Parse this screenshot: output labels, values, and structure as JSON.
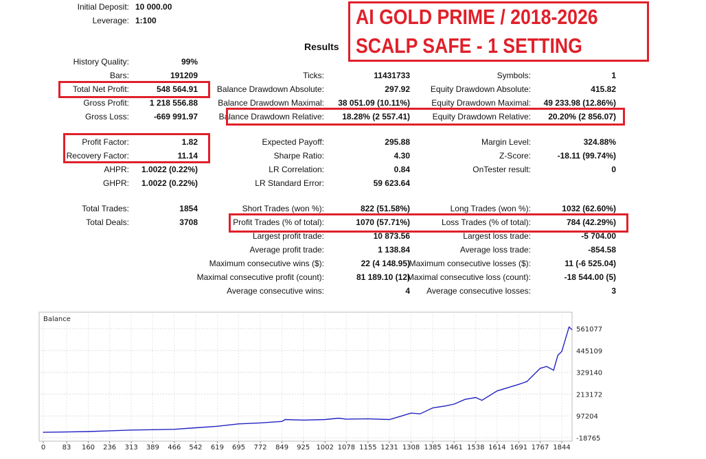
{
  "title": {
    "line1": "AI GOLD PRIME / 2018-2026",
    "line2": "SCALP SAFE - 1 SETTING",
    "color": "#e0202a"
  },
  "results_heading": "Results",
  "rows": [
    [
      [
        "Initial Deposit:",
        "10 000.00"
      ],
      null,
      null
    ],
    [
      [
        "Leverage:",
        "1:100"
      ],
      null,
      null
    ],
    [
      [
        "History Quality:",
        "99%"
      ],
      null,
      null
    ],
    [
      [
        "Bars:",
        "191209"
      ],
      [
        "Ticks:",
        "11431733"
      ],
      [
        "Symbols:",
        "1"
      ]
    ],
    [
      [
        "Total Net Profit:",
        "548 564.91"
      ],
      [
        "Balance Drawdown Absolute:",
        "297.92"
      ],
      [
        "Equity Drawdown Absolute:",
        "415.82"
      ]
    ],
    [
      [
        "Gross Profit:",
        "1 218 556.88"
      ],
      [
        "Balance Drawdown Maximal:",
        "38 051.09 (10.11%)"
      ],
      [
        "Equity Drawdown Maximal:",
        "49 233.98 (12.86%)"
      ]
    ],
    [
      [
        "Gross Loss:",
        "-669 991.97"
      ],
      [
        "Balance Drawdown Relative:",
        "18.28% (2 557.41)"
      ],
      [
        "Equity Drawdown Relative:",
        "20.20% (2 856.07)"
      ]
    ],
    [
      [
        "Profit Factor:",
        "1.82"
      ],
      [
        "Expected Payoff:",
        "295.88"
      ],
      [
        "Margin Level:",
        "324.88%"
      ]
    ],
    [
      [
        "Recovery Factor:",
        "11.14"
      ],
      [
        "Sharpe Ratio:",
        "4.30"
      ],
      [
        "Z-Score:",
        "-18.11 (99.74%)"
      ]
    ],
    [
      [
        "AHPR:",
        "1.0022 (0.22%)"
      ],
      [
        "LR Correlation:",
        "0.84"
      ],
      [
        "OnTester result:",
        "0"
      ]
    ],
    [
      [
        "GHPR:",
        "1.0022 (0.22%)"
      ],
      [
        "LR Standard Error:",
        "59 623.64"
      ],
      null
    ],
    [
      [
        "Total Trades:",
        "1854"
      ],
      [
        "Short Trades (won %):",
        "822 (51.58%)"
      ],
      [
        "Long Trades (won %):",
        "1032 (62.60%)"
      ]
    ],
    [
      [
        "Total Deals:",
        "3708"
      ],
      [
        "Profit Trades (% of total):",
        "1070 (57.71%)"
      ],
      [
        "Loss Trades (% of total):",
        "784 (42.29%)"
      ]
    ],
    [
      null,
      [
        "Largest profit trade:",
        "10 873.56"
      ],
      [
        "Largest loss trade:",
        "-5 704.00"
      ]
    ],
    [
      null,
      [
        "Average profit trade:",
        "1 138.84"
      ],
      [
        "Average loss trade:",
        "-854.58"
      ]
    ],
    [
      null,
      [
        "Maximum consecutive wins ($):",
        "22 (4 148.95)"
      ],
      [
        "Maximum consecutive losses ($):",
        "11 (-6 525.04)"
      ]
    ],
    [
      null,
      [
        "Maximal consecutive profit (count):",
        "81 189.10 (12)"
      ],
      [
        "Maximal consecutive loss (count):",
        "-18 544.00 (5)"
      ]
    ],
    [
      null,
      [
        "Average consecutive wins:",
        "4"
      ],
      [
        "Average consecutive losses:",
        "3"
      ]
    ]
  ],
  "chart_data": {
    "type": "line",
    "title": "Balance",
    "line_color": "#2222c0",
    "grid": true,
    "x_ticks": [
      "0",
      "83",
      "160",
      "236",
      "313",
      "389",
      "466",
      "542",
      "619",
      "695",
      "772",
      "849",
      "925",
      "1002",
      "1078",
      "1155",
      "1231",
      "1308",
      "1385",
      "1461",
      "1538",
      "1614",
      "1691",
      "1767",
      "1844"
    ],
    "y_ticks": [
      "561077",
      "445109",
      "329140",
      "213172",
      "97204",
      "-18765"
    ],
    "xlim": [
      0,
      1885
    ],
    "ylim": [
      -18765,
      620000
    ],
    "series": [
      {
        "x": [
          0,
          83,
          160,
          236,
          313,
          389,
          466,
          542,
          619,
          695,
          772,
          849,
          860,
          925,
          1002,
          1050,
          1078,
          1155,
          1231,
          1270,
          1308,
          1340,
          1385,
          1430,
          1461,
          1500,
          1538,
          1560,
          1614,
          1691,
          1720,
          1767,
          1790,
          1815,
          1830,
          1844,
          1870,
          1880
        ],
        "y": [
          10000,
          12000,
          14000,
          18000,
          22000,
          24000,
          26000,
          34000,
          42000,
          55000,
          60000,
          68000,
          78000,
          75000,
          78000,
          85000,
          80000,
          82000,
          78000,
          95000,
          112000,
          108000,
          140000,
          150000,
          160000,
          185000,
          195000,
          180000,
          230000,
          265000,
          280000,
          350000,
          360000,
          340000,
          420000,
          440000,
          570000,
          556000
        ]
      }
    ]
  }
}
